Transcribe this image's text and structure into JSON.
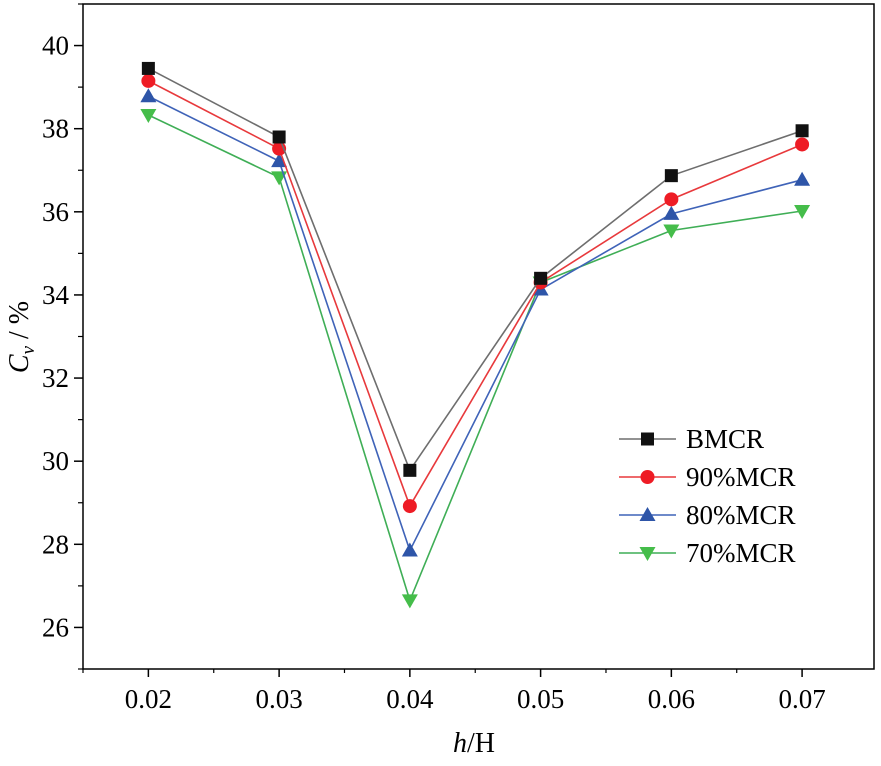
{
  "chart_data": {
    "type": "line",
    "title": "",
    "xlabel_italic": "h",
    "xlabel_rest": "/H",
    "ylabel_italic": "C",
    "ylabel_sub": "v",
    "ylabel_rest": " / %",
    "x": [
      0.02,
      0.03,
      0.04,
      0.05,
      0.06,
      0.07
    ],
    "x_tick_labels": [
      "0.02",
      "0.03",
      "0.04",
      "0.05",
      "0.06",
      "0.07"
    ],
    "xlim": [
      0.015,
      0.0755
    ],
    "ylim": [
      25,
      41
    ],
    "y_ticks": [
      26,
      28,
      30,
      32,
      34,
      36,
      38,
      40
    ],
    "y_tick_labels": [
      "26",
      "28",
      "30",
      "32",
      "34",
      "36",
      "38",
      "40"
    ],
    "grid": false,
    "legend_position": "bottom-right",
    "series": [
      {
        "name": "BMCR",
        "color": "#6e6e6e",
        "marker_color": "#111111",
        "marker": "square",
        "values": [
          39.45,
          37.8,
          29.78,
          34.4,
          36.87,
          37.95
        ]
      },
      {
        "name": "90%MCR",
        "color": "#e8393c",
        "marker_color": "#ee1c25",
        "marker": "circle",
        "values": [
          39.15,
          37.52,
          28.92,
          34.3,
          36.3,
          37.62
        ]
      },
      {
        "name": "80%MCR",
        "color": "#3f63b8",
        "marker_color": "#2e55a8",
        "marker": "triangle-up",
        "values": [
          38.78,
          37.22,
          27.85,
          34.13,
          35.95,
          36.77
        ]
      },
      {
        "name": "70%MCR",
        "color": "#3fae56",
        "marker_color": "#45bd4a",
        "marker": "triangle-down",
        "values": [
          38.33,
          36.83,
          26.65,
          34.3,
          35.55,
          36.02
        ]
      }
    ]
  }
}
